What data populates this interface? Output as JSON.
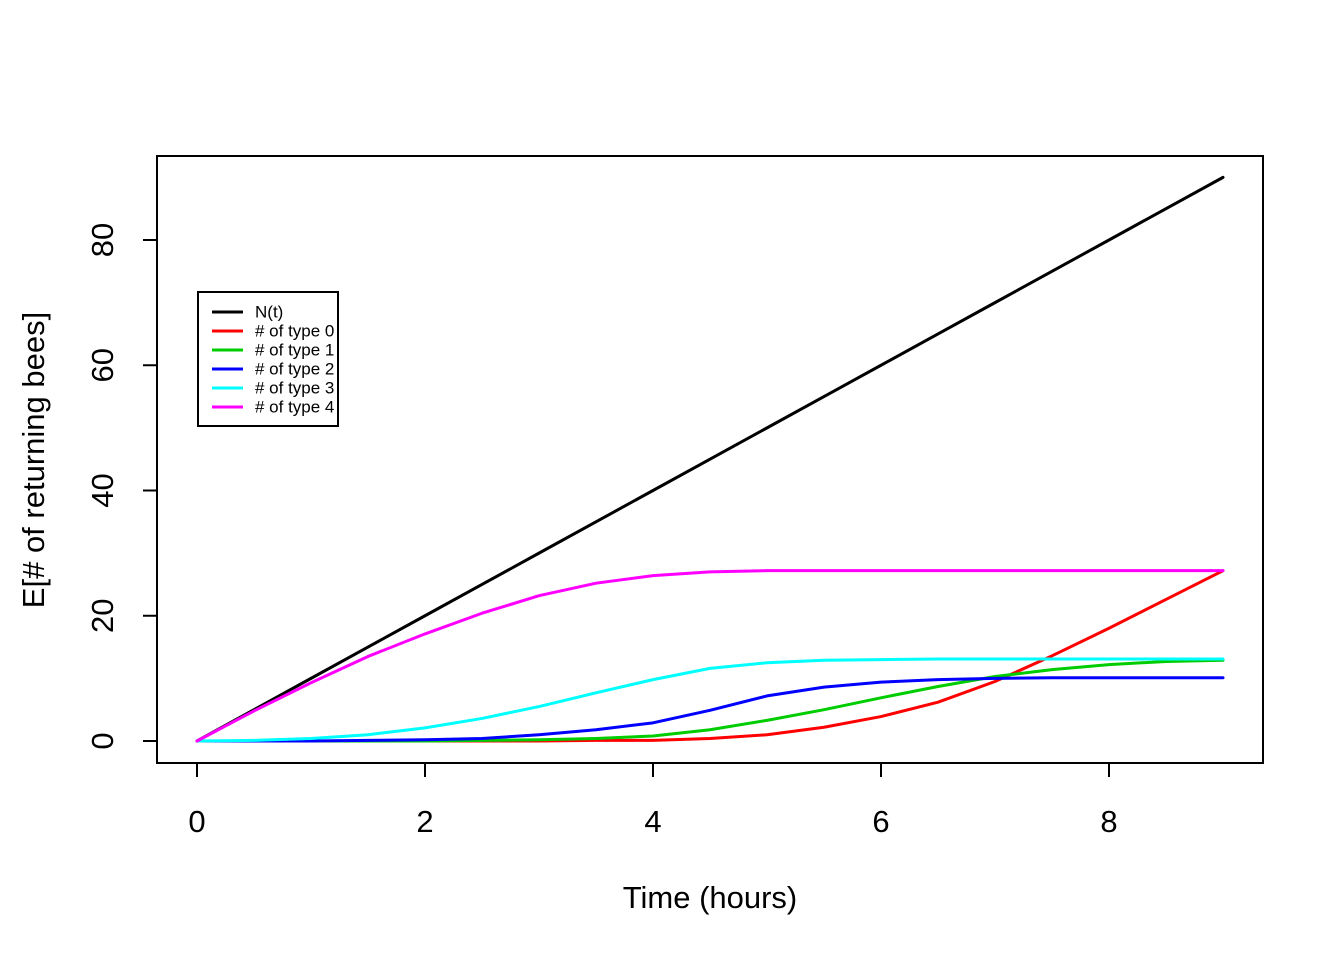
{
  "chart_data": {
    "type": "line",
    "title": "",
    "xlabel": "Time (hours)",
    "ylabel": "E[# of returning bees]",
    "xlim": [
      0,
      9
    ],
    "ylim": [
      0,
      90
    ],
    "x_ticks": [
      0,
      2,
      4,
      6,
      8
    ],
    "y_ticks": [
      0,
      20,
      40,
      60,
      80
    ],
    "grid": false,
    "background": "#ffffff",
    "axis_color": "#000000",
    "legend": {
      "position": "upper-left-inside",
      "border": true,
      "border_color": "#000000",
      "background": "#ffffff"
    },
    "x": [
      0,
      0.5,
      1,
      1.5,
      2,
      2.5,
      3,
      3.5,
      4,
      4.5,
      5,
      5.5,
      6,
      6.5,
      7,
      7.5,
      8,
      8.5,
      9
    ],
    "series": [
      {
        "name": "N(t)",
        "color": "#000000",
        "values": [
          0,
          5,
          10,
          15,
          20,
          25,
          30,
          35,
          40,
          45,
          50,
          55,
          60,
          65,
          70,
          75,
          80,
          85,
          90
        ]
      },
      {
        "name": "# of type 0",
        "color": "#FF0000",
        "values": [
          0,
          0,
          0,
          0,
          0,
          0,
          0,
          0.1,
          0.1,
          0.4,
          1.0,
          2.2,
          3.9,
          6.2,
          9.5,
          13.6,
          18.0,
          22.6,
          27.2
        ]
      },
      {
        "name": "# of type 1",
        "color": "#00CD00",
        "values": [
          0,
          0,
          0,
          0,
          0,
          0.1,
          0.2,
          0.4,
          0.8,
          1.8,
          3.3,
          5.0,
          6.9,
          8.7,
          10.3,
          11.4,
          12.2,
          12.7,
          12.9
        ]
      },
      {
        "name": "# of type 2",
        "color": "#0000FF",
        "values": [
          0,
          0,
          0,
          0.1,
          0.2,
          0.4,
          1.0,
          1.8,
          2.9,
          4.9,
          7.2,
          8.6,
          9.4,
          9.8,
          10.0,
          10.1,
          10.1,
          10.1,
          10.1
        ]
      },
      {
        "name": "# of type 3",
        "color": "#00FFFF",
        "values": [
          0,
          0.1,
          0.4,
          1.0,
          2.1,
          3.6,
          5.5,
          7.7,
          9.8,
          11.6,
          12.5,
          12.9,
          13.0,
          13.1,
          13.1,
          13.1,
          13.1,
          13.1,
          13.1
        ]
      },
      {
        "name": "# of type 4",
        "color": "#FF00FF",
        "values": [
          0,
          4.8,
          9.3,
          13.5,
          17.1,
          20.4,
          23.2,
          25.2,
          26.4,
          27.0,
          27.2,
          27.2,
          27.2,
          27.2,
          27.2,
          27.2,
          27.2,
          27.2,
          27.2
        ]
      }
    ]
  }
}
